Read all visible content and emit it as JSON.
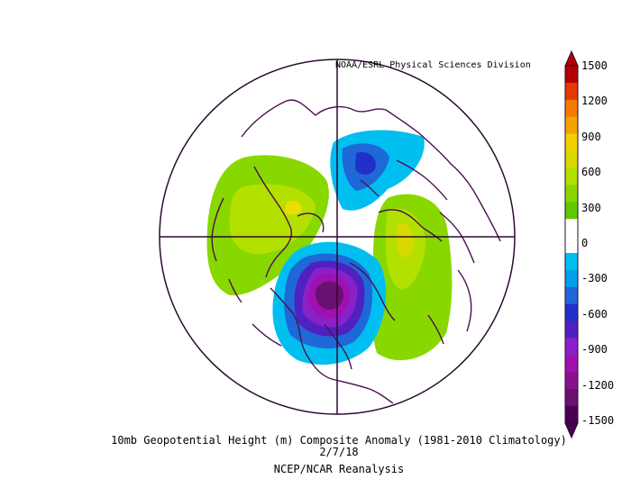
{
  "credit": "NOAA/ESRL Physical Sciences Division",
  "title": "10mb Geopotential Height (m) Composite Anomaly (1981-2010 Climatology)",
  "date": "2/7/18",
  "source": "NCEP/NCAR Reanalysis",
  "colorbar": {
    "labels": [
      "1500",
      "1200",
      "900",
      "600",
      "300",
      "0",
      "-300",
      "-600",
      "-900",
      "-1200",
      "-1500"
    ],
    "colors": [
      "#b30000",
      "#e23a00",
      "#f57a00",
      "#f5a300",
      "#f0d000",
      "#d8d800",
      "#b4e000",
      "#88d800",
      "#60c800",
      "#ffffff",
      "#ffffff",
      "#00bff0",
      "#00a0ea",
      "#1f68d8",
      "#2030c8",
      "#5020c0",
      "#8a20c8",
      "#a010b0",
      "#8a1090",
      "#6a1070",
      "#4a0050"
    ]
  },
  "colors": {
    "coast": "#4a1050",
    "frame": "#2a0a30"
  }
}
